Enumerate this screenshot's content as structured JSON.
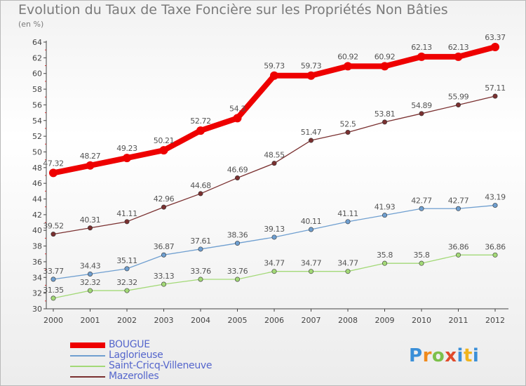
{
  "title": "Evolution du Taux de Taxe Foncière sur les Propriétés Non Bâties",
  "subtitle": "(en %)",
  "logo": {
    "text": "Proxiti"
  },
  "chart_data": {
    "type": "line",
    "title": "Evolution du Taux de Taxe Foncière sur les Propriétés Non Bâties",
    "ylabel": "(en %)",
    "xlabel": "",
    "x": [
      "2000",
      "2001",
      "2002",
      "2003",
      "2004",
      "2005",
      "2006",
      "2007",
      "2008",
      "2009",
      "2010",
      "2011",
      "2012"
    ],
    "ylim": [
      30,
      64
    ],
    "yticks": [
      30,
      32,
      34,
      36,
      38,
      40,
      42,
      44,
      46,
      48,
      50,
      52,
      54,
      56,
      58,
      60,
      62,
      64
    ],
    "grid": false,
    "legend": "bottom-left",
    "series": [
      {
        "name": "BOUGUE",
        "color": "#ee0000",
        "values": [
          47.32,
          48.27,
          49.23,
          50.21,
          52.72,
          54.3,
          59.73,
          59.73,
          60.92,
          60.92,
          62.13,
          62.13,
          63.37
        ],
        "labels": [
          "47.32",
          "48.27",
          "49.23",
          "50.21",
          "52.72",
          "54.3",
          "59.73",
          "59.73",
          "60.92",
          "60.92",
          "62.13",
          "62.13",
          "63.37"
        ]
      },
      {
        "name": "Laglorieuse",
        "color": "#6f9fd0",
        "values": [
          33.77,
          34.43,
          35.11,
          36.87,
          37.61,
          38.36,
          39.13,
          40.11,
          41.11,
          41.93,
          42.77,
          42.77,
          43.19
        ],
        "labels": [
          "33.77",
          "34.43",
          "35.11",
          "36.87",
          "37.61",
          "38.36",
          "39.13",
          "40.11",
          "41.11",
          "41.93",
          "42.77",
          "42.77",
          "43.19"
        ]
      },
      {
        "name": "Saint-Cricq-Villeneuve",
        "color": "#a3d977",
        "values": [
          31.35,
          32.32,
          32.32,
          33.13,
          33.76,
          33.76,
          34.77,
          34.77,
          34.77,
          35.8,
          35.8,
          36.86,
          36.86
        ],
        "labels": [
          "31.35",
          "32.32",
          "32.32",
          "33.13",
          "33.76",
          "33.76",
          "34.77",
          "34.77",
          "34.77",
          "35.8",
          "35.8",
          "36.86",
          "36.86"
        ]
      },
      {
        "name": "Mazerolles",
        "color": "#7a3030",
        "values": [
          39.52,
          40.31,
          41.11,
          42.96,
          44.68,
          46.69,
          48.55,
          51.47,
          52.5,
          53.81,
          54.89,
          55.99,
          57.11
        ],
        "labels": [
          "39.52",
          "40.31",
          "41.11",
          "42.96",
          "44.68",
          "46.69",
          "48.55",
          "51.47",
          "52.5",
          "53.81",
          "54.89",
          "55.99",
          "57.11"
        ]
      }
    ]
  }
}
